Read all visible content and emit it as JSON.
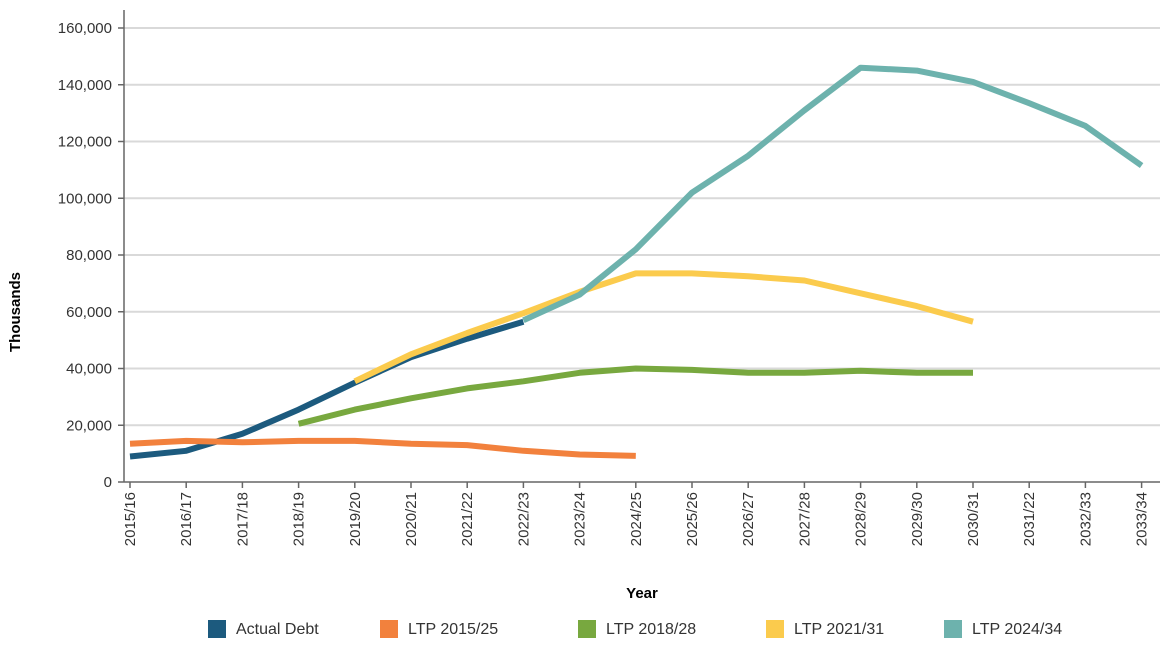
{
  "chart_data": {
    "type": "line",
    "title": "",
    "xlabel": "Year",
    "ylabel": "Thousands",
    "x": [
      "2015/16",
      "2016/17",
      "2017/18",
      "2018/19",
      "2019/20",
      "2020/21",
      "2021/22",
      "2022/23",
      "2023/24",
      "2024/25",
      "2025/26",
      "2026/27",
      "2027/28",
      "2028/29",
      "2029/30",
      "2030/31",
      "2031/22",
      "2032/33",
      "2033/34"
    ],
    "ylim": [
      0,
      160000
    ],
    "yticks": [
      0,
      20000,
      40000,
      60000,
      80000,
      100000,
      120000,
      140000,
      160000
    ],
    "ytick_labels": [
      "0",
      "20,000",
      "40,000",
      "60,000",
      "80,000",
      "100,000",
      "120,000",
      "140,000",
      "160,000"
    ],
    "grid": true,
    "legend_position": "bottom",
    "series": [
      {
        "name": "Actual Debt",
        "color": "#1c5a7e",
        "values": [
          9000,
          11000,
          17000,
          25500,
          35000,
          44000,
          50500,
          56500,
          null,
          null,
          null,
          null,
          null,
          null,
          null,
          null,
          null,
          null,
          null
        ]
      },
      {
        "name": "LTP 2015/25",
        "color": "#f2813d",
        "values": [
          13500,
          14500,
          14000,
          14500,
          14500,
          13500,
          13000,
          11000,
          9700,
          9200,
          null,
          null,
          null,
          null,
          null,
          null,
          null,
          null,
          null
        ]
      },
      {
        "name": "LTP 2018/28",
        "color": "#78a83f",
        "values": [
          null,
          null,
          null,
          20500,
          25500,
          29500,
          33000,
          35500,
          38500,
          40000,
          39500,
          38500,
          38500,
          39200,
          38500,
          38500,
          null,
          null,
          null
        ]
      },
      {
        "name": "LTP 2021/31",
        "color": "#fbcb4d",
        "values": [
          null,
          null,
          null,
          null,
          35500,
          45000,
          52500,
          59500,
          67000,
          73500,
          73500,
          72500,
          71000,
          66500,
          62000,
          56500,
          null,
          null,
          null
        ]
      },
      {
        "name": "LTP 2024/34",
        "color": "#6db2ad",
        "values": [
          null,
          null,
          null,
          null,
          null,
          null,
          null,
          57000,
          66000,
          82000,
          102000,
          115000,
          131000,
          146000,
          145000,
          141000,
          133500,
          125500,
          111500
        ]
      }
    ]
  }
}
